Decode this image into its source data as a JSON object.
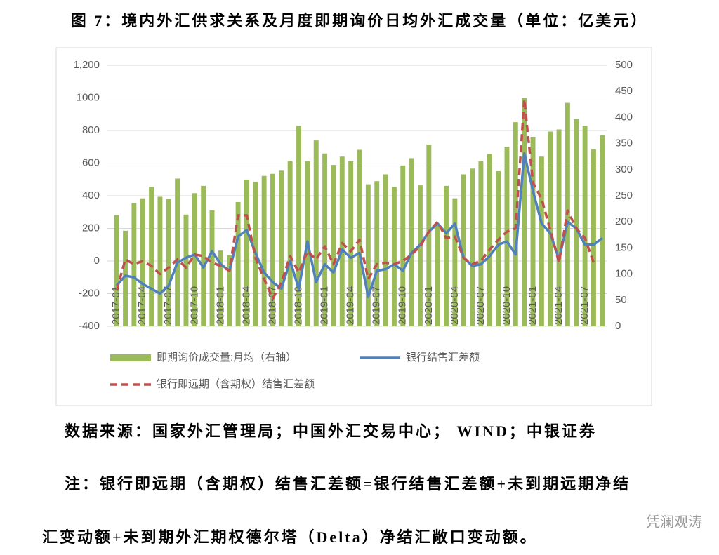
{
  "chart_data": {
    "type": "combo",
    "title": "图 7：境内外汇供求关系及月度即期询价日均外汇成交量（单位：亿美元）",
    "categories": [
      "2017-01",
      null,
      null,
      "2017-04",
      null,
      null,
      "2017-07",
      null,
      null,
      "2017-10",
      null,
      null,
      "2018-01",
      null,
      null,
      "2018-04",
      null,
      null,
      "2018-07",
      null,
      null,
      "2018-10",
      null,
      null,
      "2019-01",
      null,
      null,
      "2019-04",
      null,
      null,
      "2019-07",
      null,
      null,
      "2019-10",
      null,
      null,
      "2020-01",
      null,
      null,
      "2020-04",
      null,
      null,
      "2020-07",
      null,
      null,
      "2020-10",
      null,
      null,
      "2021-01",
      null,
      null,
      "2021-04",
      null,
      null,
      "2021-07",
      null,
      null
    ],
    "series": [
      {
        "name": "即期询价成交量:月均（右轴）",
        "type": "bar",
        "axis": "y2",
        "color": "#9bbb59",
        "values": [
          213,
          183,
          236,
          245,
          267,
          248,
          244,
          283,
          214,
          255,
          269,
          222,
          145,
          136,
          238,
          281,
          277,
          288,
          292,
          298,
          316,
          384,
          316,
          356,
          331,
          309,
          325,
          316,
          338,
          272,
          278,
          291,
          267,
          308,
          322,
          270,
          348,
          195,
          269,
          245,
          291,
          302,
          316,
          330,
          297,
          344,
          391,
          438,
          363,
          325,
          373,
          377,
          428,
          397,
          384,
          339,
          366
        ]
      },
      {
        "name": "银行结售汇差额",
        "type": "line",
        "axis": "y",
        "color": "#4f81bd",
        "style": "solid",
        "values": [
          -150,
          -90,
          -100,
          -140,
          -170,
          -200,
          -150,
          -10,
          20,
          40,
          -40,
          60,
          -20,
          -60,
          150,
          190,
          50,
          -70,
          -130,
          -170,
          0,
          -170,
          120,
          -130,
          -20,
          -70,
          70,
          20,
          50,
          -220,
          -60,
          -50,
          -20,
          -60,
          50,
          100,
          180,
          230,
          170,
          230,
          20,
          -30,
          -20,
          30,
          100,
          120,
          40,
          660,
          430,
          230,
          170,
          10,
          240,
          200,
          100,
          100,
          140
        ]
      },
      {
        "name": "银行即远期（含期权）结售汇差额",
        "type": "line",
        "axis": "y",
        "color": "#c0504d",
        "style": "dashed",
        "values": [
          -180,
          10,
          -20,
          0,
          -30,
          -80,
          -40,
          10,
          -40,
          40,
          30,
          -10,
          -30,
          -60,
          280,
          280,
          20,
          -110,
          -230,
          -130,
          30,
          -70,
          60,
          10,
          90,
          -20,
          110,
          60,
          130,
          -110,
          -20,
          -10,
          -20,
          0,
          40,
          90,
          180,
          240,
          140,
          150,
          20,
          -20,
          0,
          70,
          130,
          180,
          200,
          990,
          480,
          380,
          190,
          -10,
          310,
          200,
          140,
          -10,
          null
        ]
      }
    ],
    "ylim": [
      -400,
      1200
    ],
    "yticks": [
      -400,
      -200,
      0,
      200,
      400,
      600,
      800,
      1000,
      {
        "value": 1200,
        "label": "1,200"
      }
    ],
    "y2lim": [
      0,
      500
    ],
    "y2ticks": [
      0,
      50,
      100,
      150,
      200,
      250,
      300,
      350,
      400,
      450,
      500
    ],
    "grid": true
  },
  "source": "数据来源：国家外汇管理局；中国外汇交易中心； WIND；中银证券",
  "note": [
    "注：银行即远期（含期权）结售汇差额=银行结售汇差额+未到期远期净结",
    "汇变动额+未到期外汇期权德尔塔（Delta）净结汇敞口变动额。"
  ],
  "watermark": "凭澜观涛"
}
